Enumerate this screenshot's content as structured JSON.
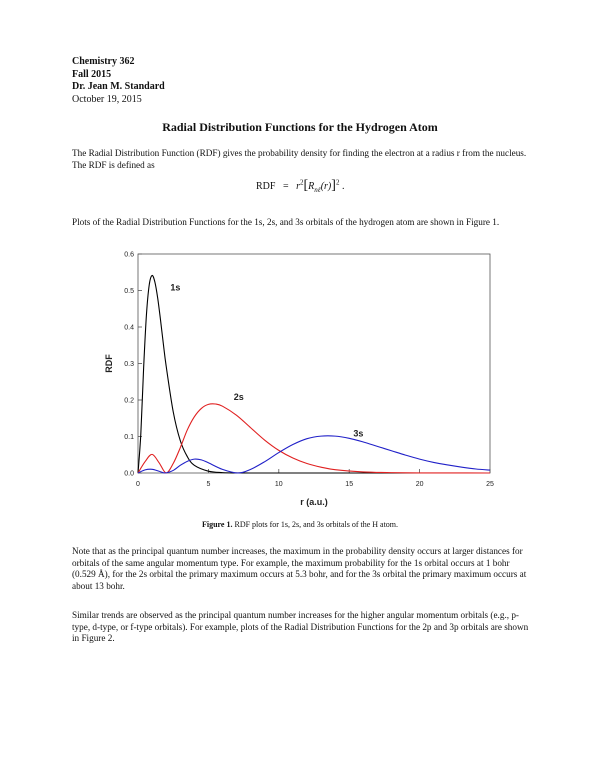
{
  "header": {
    "course": "Chemistry 362",
    "term": "Fall 2015",
    "author": "Dr. Jean M. Standard",
    "date": "October 19, 2015"
  },
  "title": "Radial Distribution Functions for the Hydrogen Atom",
  "intro": "The Radial Distribution Function (RDF) gives the probability density for finding the electron at a radius r from the nucleus.  The RDF is defined as",
  "equation": {
    "lhs": "RDF",
    "equals": "=",
    "r": "r",
    "sup2": "2",
    "R": "R",
    "sub": "nℓ",
    "arg": "(r)",
    "period": "."
  },
  "plots_intro": "Plots of the Radial Distribution Functions for the 1s, 2s, and 3s orbitals of the hydrogen atom are shown in Figure 1.",
  "figure_caption": {
    "label": "Figure 1.",
    "text": " RDF plots for 1s, 2s, and 3s orbitals of the H atom."
  },
  "paragraph1": "Note that as the principal quantum number increases, the maximum in the probability density occurs at larger distances for orbitals of the same angular momentum type.  For example, the maximum probability for the 1s orbital occurs at 1 bohr (0.529 Å), for the 2s orbital the primary maximum occurs at 5.3 bohr, and for the 3s orbital the primary maximum occurs at about 13 bohr.",
  "paragraph2": "Similar trends are observed as the principal quantum number increases for the higher angular momentum orbitals (e.g., p-type, d-type, or f-type orbitals).  For example, plots of the Radial Distribution Functions for the 2p and 3p orbitals are shown in Figure 2.",
  "chart_data": {
    "type": "line",
    "title": "",
    "xlabel": "r (a.u.)",
    "ylabel": "RDF",
    "xlim": [
      0,
      25
    ],
    "ylim": [
      0,
      0.6
    ],
    "xticks": [
      0,
      5,
      10,
      15,
      20,
      25
    ],
    "yticks": [
      0.0,
      0.1,
      0.2,
      0.3,
      0.4,
      0.5,
      0.6
    ],
    "ytick_labels": [
      "0.0",
      "0.1",
      "0.2",
      "0.3",
      "0.4",
      "0.5",
      "0.6"
    ],
    "grid": false,
    "legend": "none",
    "series": [
      {
        "name": "1s",
        "color": "#000000",
        "label_at": [
          2.3,
          0.5
        ],
        "x": [
          0,
          0.2,
          0.4,
          0.6,
          0.8,
          1.0,
          1.2,
          1.4,
          1.6,
          1.8,
          2.0,
          2.5,
          3.0,
          3.5,
          4.0,
          5.0,
          6.0,
          7.0,
          8.0,
          10,
          12,
          15,
          20,
          25
        ],
        "y": [
          0,
          0.107,
          0.288,
          0.434,
          0.516,
          0.541,
          0.523,
          0.479,
          0.419,
          0.354,
          0.293,
          0.168,
          0.089,
          0.045,
          0.021,
          0.005,
          0.001,
          0.0002,
          0,
          0,
          0,
          0,
          0,
          0
        ]
      },
      {
        "name": "2s",
        "color": "#e02020",
        "label_at": [
          6.8,
          0.2
        ],
        "x": [
          0,
          0.5,
          1.0,
          1.5,
          2.0,
          2.5,
          3.0,
          3.5,
          4.0,
          4.5,
          5.0,
          5.5,
          6.0,
          7.0,
          8.0,
          9.0,
          10,
          11,
          12,
          13,
          14,
          16,
          18,
          20,
          22,
          25
        ],
        "y": [
          0,
          0.031,
          0.051,
          0.028,
          0,
          0.026,
          0.069,
          0.118,
          0.154,
          0.177,
          0.188,
          0.189,
          0.183,
          0.158,
          0.124,
          0.09,
          0.062,
          0.041,
          0.026,
          0.016,
          0.009,
          0.003,
          0.001,
          0.0003,
          0.0001,
          0
        ]
      },
      {
        "name": "3s",
        "color": "#2020c8",
        "label_at": [
          15.3,
          0.1
        ],
        "x": [
          0,
          0.5,
          1.0,
          1.5,
          1.9,
          2.5,
          3.0,
          3.5,
          4.0,
          4.5,
          5.0,
          6.0,
          7.1,
          8.0,
          9.0,
          10,
          11,
          12,
          13,
          14,
          15,
          16,
          17,
          18,
          19,
          20,
          21,
          22,
          23,
          24,
          25
        ],
        "y": [
          0,
          0.0085,
          0.0102,
          0.0048,
          0,
          0.007,
          0.021,
          0.032,
          0.038,
          0.036,
          0.028,
          0.01,
          0,
          0.01,
          0.031,
          0.056,
          0.078,
          0.094,
          0.101,
          0.101,
          0.095,
          0.085,
          0.073,
          0.061,
          0.049,
          0.038,
          0.029,
          0.022,
          0.016,
          0.011,
          0.008
        ]
      }
    ]
  }
}
